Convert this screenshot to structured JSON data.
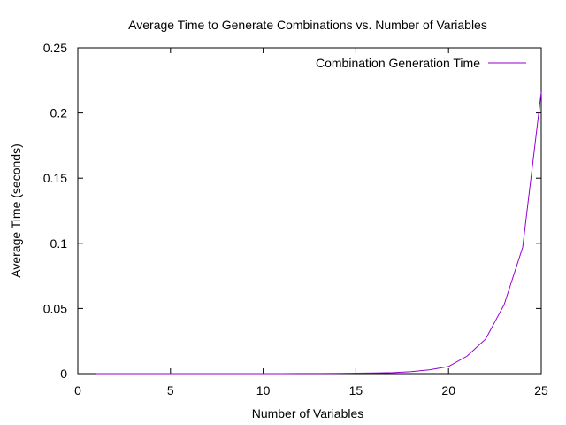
{
  "chart_data": {
    "type": "line",
    "title": "Average Time to Generate Combinations vs. Number of Variables",
    "xlabel": "Number of Variables",
    "ylabel": "Average Time (seconds)",
    "xlim": [
      0,
      25
    ],
    "ylim": [
      0,
      0.25
    ],
    "x_ticks": [
      0,
      5,
      10,
      15,
      20,
      25
    ],
    "x_tick_labels": [
      "0",
      "5",
      "10",
      "15",
      "20",
      "25"
    ],
    "y_ticks": [
      0,
      0.05,
      0.1,
      0.15,
      0.2,
      0.25
    ],
    "y_tick_labels": [
      "0",
      "0.05",
      "0.1",
      "0.15",
      "0.2",
      "0.25"
    ],
    "grid": false,
    "legend_position": "top-right",
    "series": [
      {
        "name": "Combination Generation Time",
        "color": "#9400d3",
        "x": [
          1,
          2,
          3,
          4,
          5,
          6,
          7,
          8,
          9,
          10,
          11,
          12,
          13,
          14,
          15,
          16,
          17,
          18,
          19,
          20,
          21,
          22,
          23,
          24,
          25
        ],
        "y": [
          0,
          0,
          0,
          0,
          0,
          0,
          0,
          0,
          0,
          0,
          0,
          0.0001,
          0.0001,
          0.0002,
          0.0003,
          0.0005,
          0.0008,
          0.0015,
          0.003,
          0.0055,
          0.0135,
          0.0265,
          0.053,
          0.097,
          0.216
        ]
      }
    ]
  }
}
